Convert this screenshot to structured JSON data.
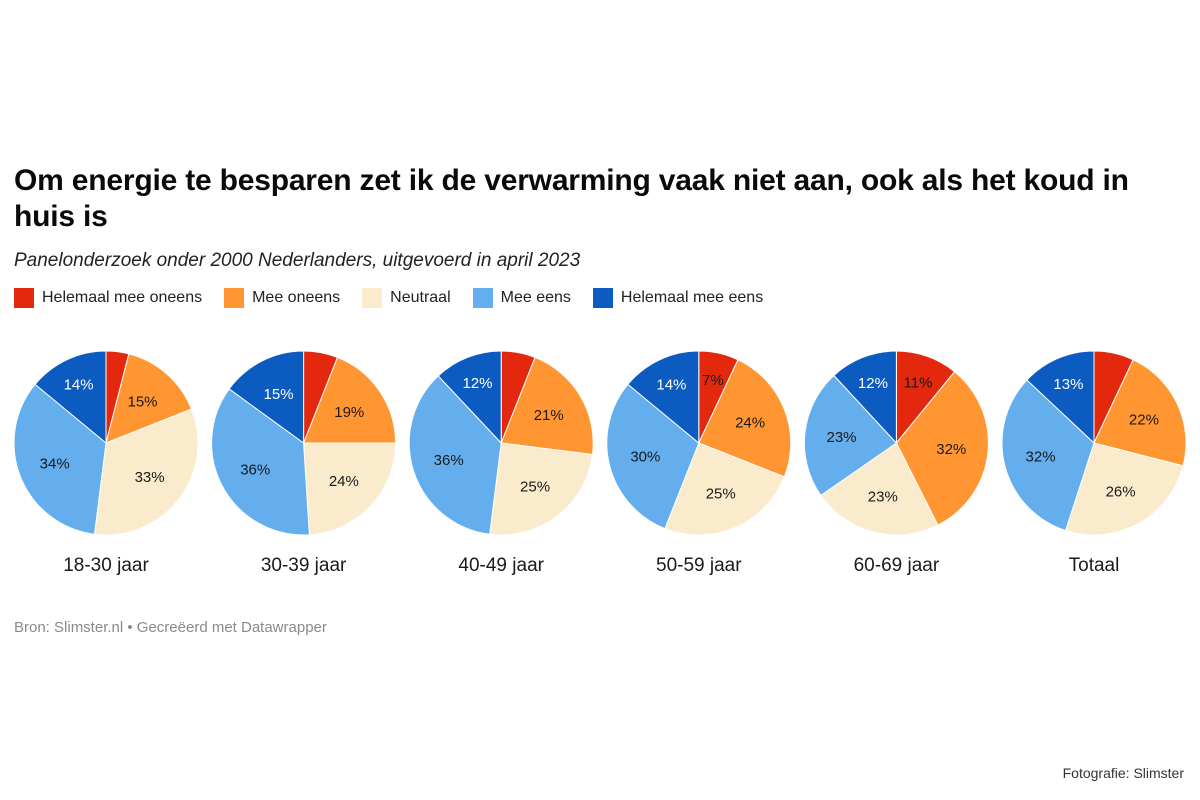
{
  "title": "Om energie te besparen zet ik de verwarming vaak niet aan, ook als het koud in huis is",
  "subtitle": "Panelonderzoek onder 2000 Nederlanders, uitgevoerd in april 2023",
  "footer": "Bron: Slimster.nl • Gecreëerd met Datawrapper",
  "photo_credit": "Fotografie: Slimster",
  "legend": [
    {
      "label": "Helemaal mee oneens",
      "color": "#E3280D"
    },
    {
      "label": "Mee oneens",
      "color": "#FF9632"
    },
    {
      "label": "Neutraal",
      "color": "#FAEBCD"
    },
    {
      "label": "Mee eens",
      "color": "#65AEEE"
    },
    {
      "label": "Helemaal mee eens",
      "color": "#0B5BC1"
    }
  ],
  "chart_data": {
    "type": "pie",
    "title": "Om energie te besparen zet ik de verwarming vaak niet aan, ook als het koud in huis is",
    "subtitle": "Panelonderzoek onder 2000 Nederlanders, uitgevoerd in april 2023",
    "categories": [
      "Helemaal mee oneens",
      "Mee oneens",
      "Neutraal",
      "Mee eens",
      "Helemaal mee eens"
    ],
    "colors": [
      "#E3280D",
      "#FF9632",
      "#FAEBCD",
      "#65AEEE",
      "#0B5BC1"
    ],
    "label_colors": [
      "#1a1a1a",
      "#1a1a1a",
      "#1a1a1a",
      "#1a1a1a",
      "#ffffff"
    ],
    "legend_position": "top-left",
    "pies": [
      {
        "name": "18-30 jaar",
        "values": [
          4,
          15,
          33,
          34,
          14
        ],
        "labels": [
          "",
          "15%",
          "33%",
          "34%",
          "14%"
        ]
      },
      {
        "name": "30-39 jaar",
        "values": [
          6,
          19,
          24,
          36,
          15
        ],
        "labels": [
          "",
          "19%",
          "24%",
          "36%",
          "15%"
        ]
      },
      {
        "name": "40-49 jaar",
        "values": [
          6,
          21,
          25,
          36,
          12
        ],
        "labels": [
          "",
          "21%",
          "25%",
          "36%",
          "12%"
        ]
      },
      {
        "name": "50-59 jaar",
        "values": [
          7,
          24,
          25,
          30,
          14
        ],
        "labels": [
          "7%",
          "24%",
          "25%",
          "30%",
          "14%"
        ]
      },
      {
        "name": "60-69 jaar",
        "values": [
          11,
          32,
          23,
          23,
          12
        ],
        "labels": [
          "11%",
          "32%",
          "23%",
          "23%",
          "12%"
        ]
      },
      {
        "name": "Totaal",
        "values": [
          7,
          22,
          26,
          32,
          13
        ],
        "labels": [
          "",
          "22%",
          "26%",
          "32%",
          "13%"
        ]
      }
    ]
  }
}
